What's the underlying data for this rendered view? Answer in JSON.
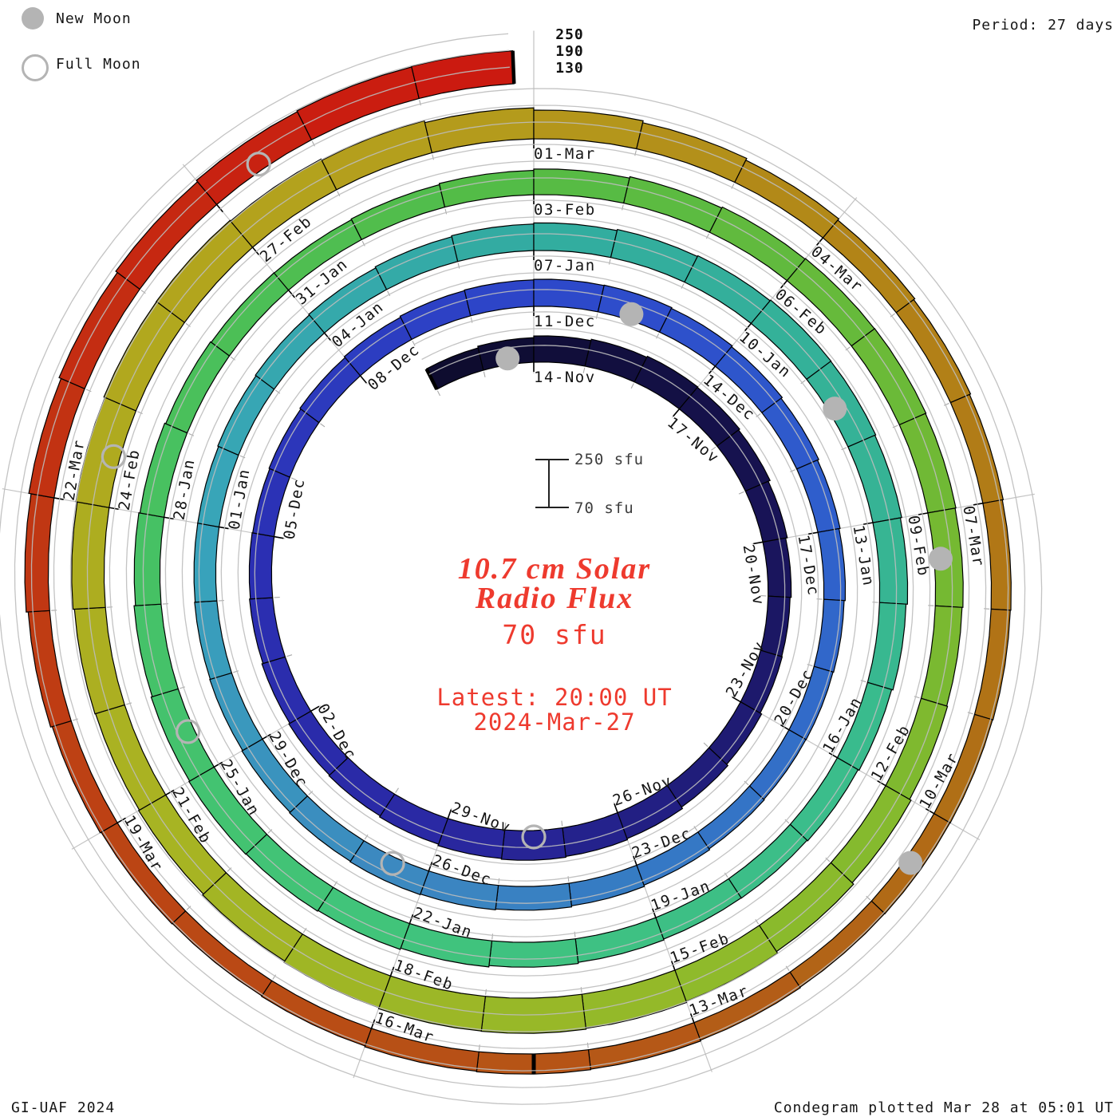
{
  "legend": {
    "new_moon": "New Moon",
    "full_moon": "Full Moon"
  },
  "header": {
    "period": "Period: 27 days"
  },
  "scale_indicator": {
    "top": "250 sfu",
    "bottom": "70 sfu"
  },
  "center": {
    "title_line1": "10.7 cm Solar",
    "title_line2": "Radio Flux",
    "value": "70 sfu",
    "latest_line1": "Latest: 20:00 UT",
    "latest_line2": "2024-Mar-27"
  },
  "footer": {
    "left": "GI-UAF 2024",
    "right": "Condegram plotted Mar 28 at 05:01 UT"
  },
  "colors": {
    "text_red": "#ee3a2e",
    "moon_gray": "#b4b4b4",
    "grid": "#bdbdbd",
    "label": "#141414"
  },
  "chart_data": {
    "type": "bar",
    "layout": "spiral",
    "title": "10.7 cm Solar Radio Flux",
    "subtitle": "Condegram, one turn = 27 days (solar rotation)",
    "period_days": 27,
    "radial_axis": {
      "unit": "sfu",
      "baseline": 70,
      "max": 250,
      "gridlines": [
        130,
        190,
        250
      ],
      "tick_labels": [
        "130",
        "190",
        "250"
      ]
    },
    "start_date": "2023-11-12",
    "end_date": "2024-03-27",
    "end_fraction": 0.83,
    "data_gap_day": 123.5,
    "values": [
      152,
      158,
      164,
      169,
      173,
      171,
      166,
      159,
      153,
      149,
      151,
      157,
      163,
      169,
      173,
      176,
      173,
      168,
      164,
      161,
      157,
      153,
      150,
      148,
      151,
      155,
      159,
      163,
      165,
      167,
      168,
      165,
      161,
      156,
      151,
      147,
      143,
      141,
      140,
      142,
      146,
      151,
      155,
      158,
      160,
      158,
      155,
      152,
      150,
      148,
      148,
      151,
      154,
      157,
      161,
      165,
      169,
      173,
      176,
      179,
      178,
      175,
      170,
      165,
      160,
      156,
      153,
      152,
      155,
      159,
      164,
      169,
      172,
      174,
      171,
      167,
      162,
      158,
      154,
      151,
      150,
      153,
      157,
      162,
      167,
      171,
      173,
      174,
      172,
      169,
      166,
      169,
      175,
      182,
      189,
      193,
      196,
      195,
      191,
      186,
      182,
      179,
      181,
      186,
      191,
      195,
      196,
      193,
      188,
      181,
      173,
      166,
      159,
      153,
      148,
      144,
      141,
      139,
      137,
      136,
      135,
      137,
      140,
      142,
      140,
      137,
      135,
      137,
      141,
      147,
      154,
      162,
      170,
      177,
      183,
      186,
      188
    ],
    "date_labels": [
      {
        "day": 2,
        "text": "14-Nov"
      },
      {
        "day": 5,
        "text": "17-Nov"
      },
      {
        "day": 8,
        "text": "20-Nov"
      },
      {
        "day": 11,
        "text": "23-Nov"
      },
      {
        "day": 14,
        "text": "26-Nov"
      },
      {
        "day": 17,
        "text": "29-Nov"
      },
      {
        "day": 20,
        "text": "02-Dec"
      },
      {
        "day": 23,
        "text": "05-Dec"
      },
      {
        "day": 26,
        "text": "08-Dec"
      },
      {
        "day": 29,
        "text": "11-Dec"
      },
      {
        "day": 32,
        "text": "14-Dec"
      },
      {
        "day": 35,
        "text": "17-Dec"
      },
      {
        "day": 38,
        "text": "20-Dec"
      },
      {
        "day": 41,
        "text": "23-Dec"
      },
      {
        "day": 44,
        "text": "26-Dec"
      },
      {
        "day": 47,
        "text": "29-Dec"
      },
      {
        "day": 50,
        "text": "01-Jan"
      },
      {
        "day": 53,
        "text": "04-Jan"
      },
      {
        "day": 56,
        "text": "07-Jan"
      },
      {
        "day": 59,
        "text": "10-Jan"
      },
      {
        "day": 62,
        "text": "13-Jan"
      },
      {
        "day": 65,
        "text": "16-Jan"
      },
      {
        "day": 68,
        "text": "19-Jan"
      },
      {
        "day": 71,
        "text": "22-Jan"
      },
      {
        "day": 74,
        "text": "25-Jan"
      },
      {
        "day": 77,
        "text": "28-Jan"
      },
      {
        "day": 80,
        "text": "31-Jan"
      },
      {
        "day": 83,
        "text": "03-Feb"
      },
      {
        "day": 86,
        "text": "06-Feb"
      },
      {
        "day": 89,
        "text": "09-Feb"
      },
      {
        "day": 92,
        "text": "12-Feb"
      },
      {
        "day": 95,
        "text": "15-Feb"
      },
      {
        "day": 98,
        "text": "18-Feb"
      },
      {
        "day": 101,
        "text": "21-Feb"
      },
      {
        "day": 104,
        "text": "24-Feb"
      },
      {
        "day": 107,
        "text": "27-Feb"
      },
      {
        "day": 110,
        "text": "01-Mar"
      },
      {
        "day": 113,
        "text": "04-Mar"
      },
      {
        "day": 116,
        "text": "07-Mar"
      },
      {
        "day": 119,
        "text": "10-Mar"
      },
      {
        "day": 122,
        "text": "13-Mar"
      },
      {
        "day": 125,
        "text": "16-Mar"
      },
      {
        "day": 128,
        "text": "19-Mar"
      },
      {
        "day": 131,
        "text": "22-Mar"
      }
    ],
    "moons": [
      {
        "day": 1,
        "type": "new"
      },
      {
        "day": 15,
        "type": "full"
      },
      {
        "day": 30,
        "type": "new"
      },
      {
        "day": 44,
        "type": "full"
      },
      {
        "day": 60,
        "type": "new"
      },
      {
        "day": 74,
        "type": "full"
      },
      {
        "day": 89,
        "type": "new"
      },
      {
        "day": 104,
        "type": "full"
      },
      {
        "day": 119,
        "type": "new"
      },
      {
        "day": 134,
        "type": "full"
      }
    ],
    "color_stops": [
      {
        "day": 0,
        "color": "#0d0c2c"
      },
      {
        "day": 7,
        "color": "#171252"
      },
      {
        "day": 13,
        "color": "#211e7e"
      },
      {
        "day": 17,
        "color": "#2a28a2"
      },
      {
        "day": 23,
        "color": "#2b30b4"
      },
      {
        "day": 29,
        "color": "#2d47ca"
      },
      {
        "day": 35,
        "color": "#2f60cc"
      },
      {
        "day": 41,
        "color": "#357ac4"
      },
      {
        "day": 44,
        "color": "#3c87c0"
      },
      {
        "day": 47,
        "color": "#3a95be"
      },
      {
        "day": 50,
        "color": "#38a4ba"
      },
      {
        "day": 56,
        "color": "#32aca0"
      },
      {
        "day": 62,
        "color": "#36b494"
      },
      {
        "day": 65,
        "color": "#3abc8c"
      },
      {
        "day": 71,
        "color": "#40c47c"
      },
      {
        "day": 77,
        "color": "#47c162"
      },
      {
        "day": 83,
        "color": "#54bb45"
      },
      {
        "day": 89,
        "color": "#72b933"
      },
      {
        "day": 95,
        "color": "#92ba2a"
      },
      {
        "day": 101,
        "color": "#a9b322"
      },
      {
        "day": 107,
        "color": "#b3a41d"
      },
      {
        "day": 110,
        "color": "#b4991c"
      },
      {
        "day": 113,
        "color": "#b28617"
      },
      {
        "day": 119,
        "color": "#b06d16"
      },
      {
        "day": 122,
        "color": "#b45a17"
      },
      {
        "day": 128,
        "color": "#bc4314"
      },
      {
        "day": 132,
        "color": "#c33012"
      },
      {
        "day": 136,
        "color": "#cb1a10"
      }
    ]
  }
}
